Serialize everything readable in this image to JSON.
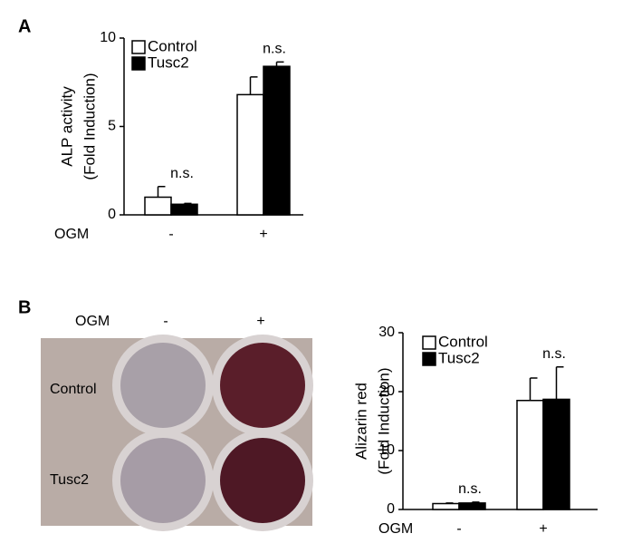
{
  "panel_labels": [
    "A",
    "B"
  ],
  "plate": {
    "row_header": "OGM",
    "columns": [
      "-",
      "+"
    ],
    "rows": [
      "Control",
      "Tusc2"
    ]
  },
  "chart_data": [
    {
      "type": "bar",
      "y_label": [
        "ALP activity",
        "(Fold Induction)"
      ],
      "x_label": "OGM",
      "categories": [
        "-",
        "+"
      ],
      "annotations": [
        "n.s.",
        "n.s."
      ],
      "series": [
        {
          "name": "Control",
          "color": "#ffffff",
          "values": [
            1.0,
            6.8
          ],
          "errors": [
            0.6,
            1.0
          ]
        },
        {
          "name": "Tusc2",
          "color": "#000000",
          "values": [
            0.6,
            8.4
          ],
          "errors": [
            0.05,
            0.25
          ]
        }
      ],
      "ylim": [
        0,
        10
      ],
      "yticks": [
        0,
        5,
        10
      ],
      "grid": false,
      "legend": "upper-left"
    },
    {
      "type": "bar",
      "y_label": [
        "Alizarin red",
        "(Fold Induction)"
      ],
      "x_label": "OGM",
      "categories": [
        "-",
        "+"
      ],
      "annotations": [
        "n.s.",
        "n.s."
      ],
      "series": [
        {
          "name": "Control",
          "color": "#ffffff",
          "values": [
            1.0,
            18.5
          ],
          "errors": [
            0.1,
            3.8
          ]
        },
        {
          "name": "Tusc2",
          "color": "#000000",
          "values": [
            1.1,
            18.7
          ],
          "errors": [
            0.15,
            5.5
          ]
        }
      ],
      "ylim": [
        0,
        30
      ],
      "yticks": [
        0,
        10,
        20,
        30
      ],
      "grid": false,
      "legend": "upper-left"
    }
  ]
}
